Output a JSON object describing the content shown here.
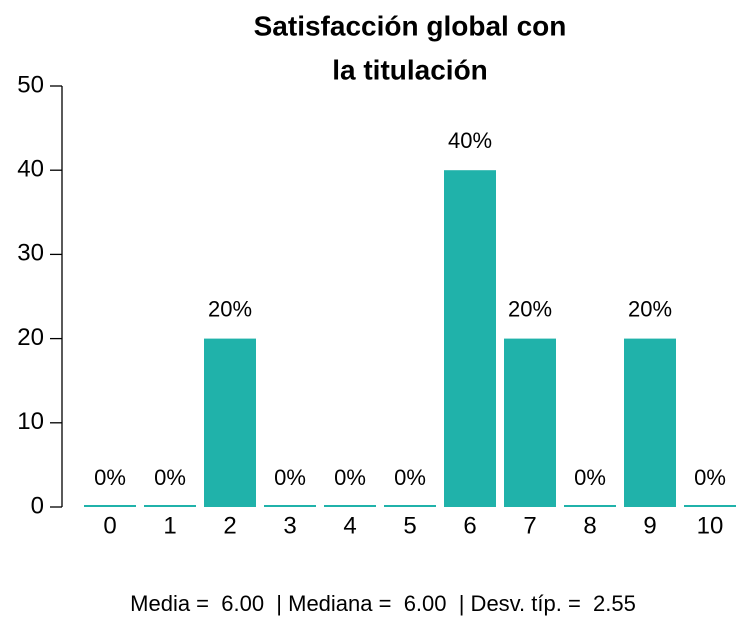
{
  "chart_data": {
    "type": "bar",
    "title": [
      "Satisfacción global con",
      "la titulación"
    ],
    "categories": [
      "0",
      "1",
      "2",
      "3",
      "4",
      "5",
      "6",
      "7",
      "8",
      "9",
      "10"
    ],
    "values": [
      0,
      0,
      20,
      0,
      0,
      0,
      40,
      20,
      0,
      20,
      0
    ],
    "value_labels": [
      "0%",
      "0%",
      "20%",
      "0%",
      "0%",
      "0%",
      "40%",
      "20%",
      "0%",
      "20%",
      "0%"
    ],
    "color": "#20b2aa",
    "ylim": [
      0,
      50
    ],
    "yticks": [
      0,
      10,
      20,
      30,
      40,
      50
    ],
    "caption": "Media =  6.00  | Mediana =  6.00  | Desv. típ. =  2.55"
  }
}
